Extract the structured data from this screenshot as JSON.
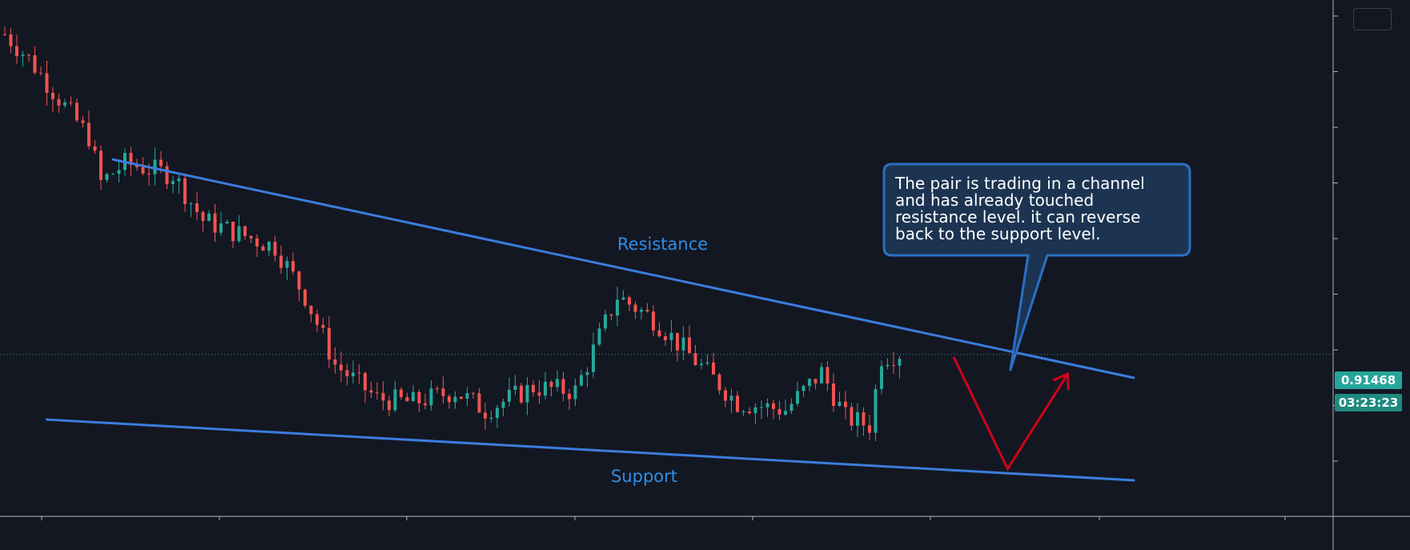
{
  "chart_data": {
    "type": "candlestick",
    "current_price": "0.91468",
    "countdown": "03:23:23",
    "colors": {
      "background": "#131722",
      "up_candle": "#26a69a",
      "down_candle": "#ef5350",
      "trend_lines": "#3b7ddd",
      "annotation_text": "#2f8fe6",
      "arrow": "#d0021b",
      "callout_fill": "#1c3452",
      "callout_border": "#2a70c4",
      "price_badge": "#26a69a"
    },
    "annotations": {
      "resistance_label": "Resistance",
      "support_label": "Support",
      "callout_lines": [
        "The pair is trading in a channel",
        "and has already touched",
        "resistance level. it can reverse",
        "back to the support level."
      ]
    },
    "trend_lines": {
      "resistance": {
        "start_bar": 18,
        "end_bar": 188,
        "start_level": 0.966,
        "end_level": 0.9085
      },
      "support": {
        "start_bar": 7,
        "end_bar": 188,
        "start_level": 0.8975,
        "end_level": 0.8815
      }
    },
    "projection": {
      "path_bars": [
        158,
        167,
        177
      ],
      "path_levels": [
        0.914,
        0.8845,
        0.9095
      ]
    },
    "bars": 150,
    "y_range": [
      0.872,
      1.008
    ],
    "grid": false,
    "legend": "none"
  }
}
